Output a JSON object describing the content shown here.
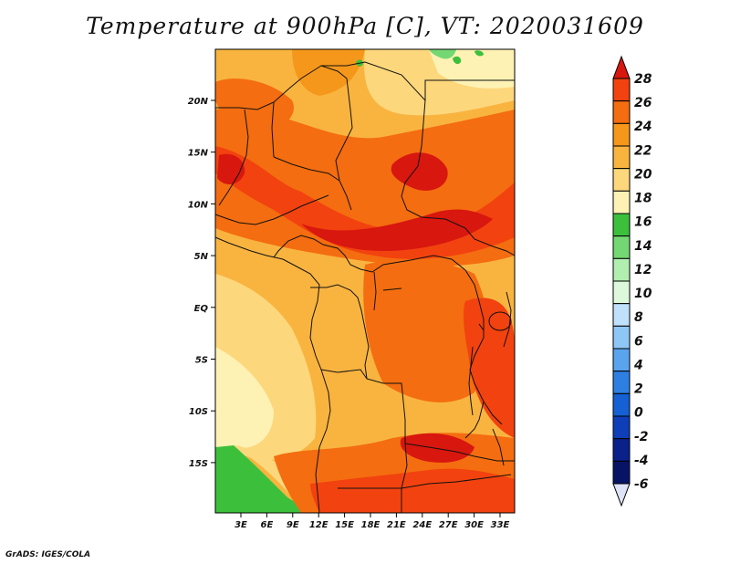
{
  "title": "Temperature at 900hPa [C], VT: 2020031609",
  "credit": "GrADS: IGES/COLA",
  "lat_labels": [
    "20N",
    "15N",
    "10N",
    "5N",
    "EQ",
    "5S",
    "10S",
    "15S"
  ],
  "lon_labels": [
    "3E",
    "6E",
    "9E",
    "12E",
    "15E",
    "18E",
    "21E",
    "24E",
    "27E",
    "30E",
    "33E"
  ],
  "colorbar": {
    "labels": [
      "28",
      "26",
      "24",
      "22",
      "20",
      "18",
      "16",
      "14",
      "12",
      "10",
      "8",
      "6",
      "4",
      "2",
      "0",
      "-2",
      "-4",
      "-6"
    ],
    "colors": [
      "#d8170f",
      "#f2420f",
      "#f46d10",
      "#f5971a",
      "#f9b440",
      "#fdd77c",
      "#fdf2b4",
      "#3cc03c",
      "#73d873",
      "#b2eeb0",
      "#ddf8da",
      "#bfe1fb",
      "#8ec6f6",
      "#5aa4ee",
      "#2d80e1",
      "#1560d2",
      "#0e3eb8",
      "#0a208a",
      "#071466"
    ],
    "over_color": "#d8170f",
    "under_color": "#dfe3f7"
  }
}
